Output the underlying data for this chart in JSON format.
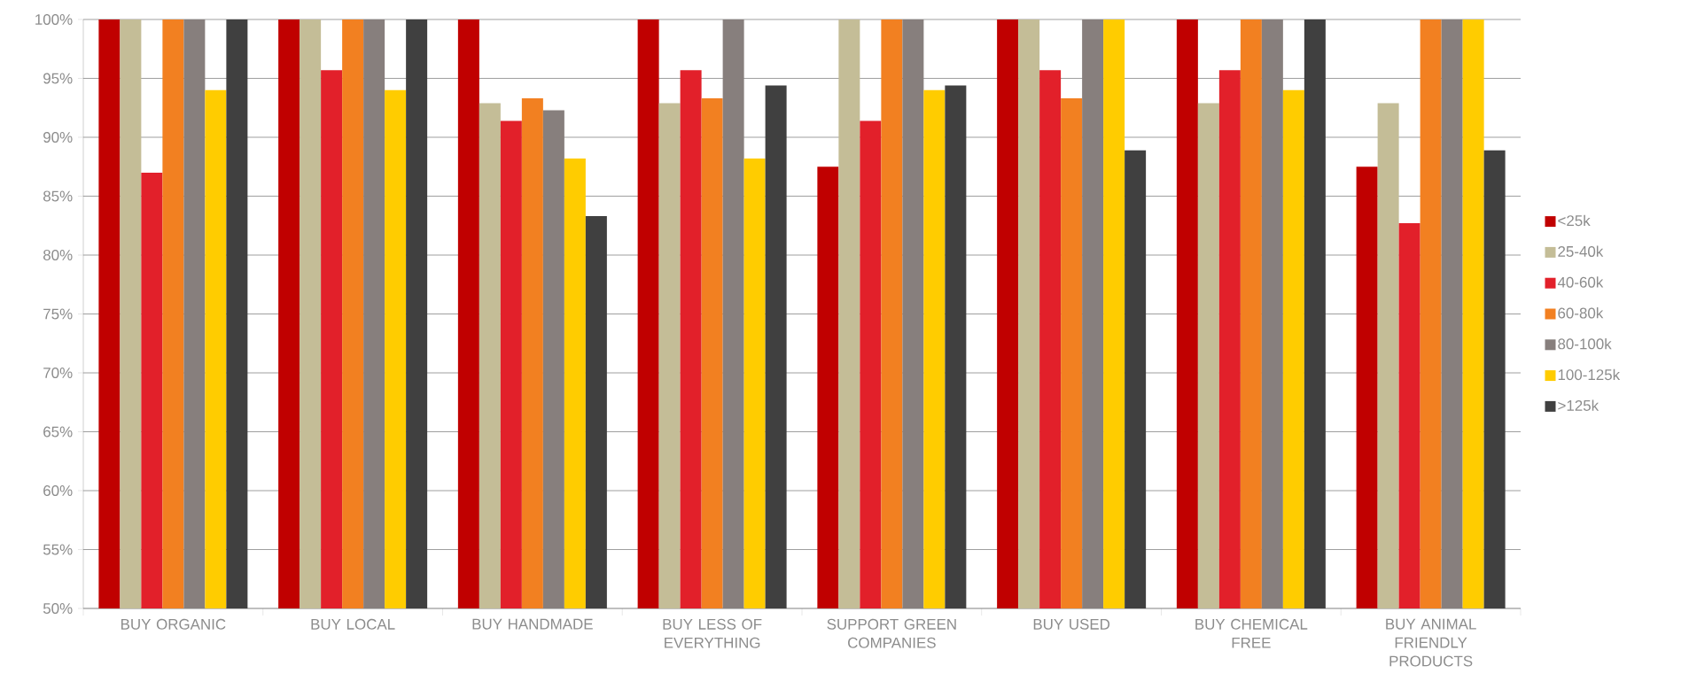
{
  "chart_data": {
    "type": "bar",
    "categories": [
      "BUY ORGANIC",
      "BUY LOCAL",
      "BUY HANDMADE",
      "BUY LESS OF EVERYTHING",
      "SUPPORT GREEN COMPANIES",
      "BUY USED",
      "BUY CHEMICAL FREE",
      "BUY ANIMAL FRIENDLY PRODUCTS"
    ],
    "series": [
      {
        "name": "<25k",
        "color": "#c00000",
        "values": [
          100,
          100,
          100,
          100,
          87.5,
          100,
          100,
          87.5
        ]
      },
      {
        "name": "25-40k",
        "color": "#c4bd97",
        "values": [
          100,
          100,
          92.9,
          92.9,
          100,
          100,
          92.9,
          92.9
        ]
      },
      {
        "name": "40-60k",
        "color": "#e2202a",
        "values": [
          87.0,
          95.7,
          91.4,
          95.7,
          91.4,
          95.7,
          95.7,
          82.7
        ]
      },
      {
        "name": "60-80k",
        "color": "#f28021",
        "values": [
          100,
          100,
          93.3,
          93.3,
          100,
          93.3,
          100,
          100
        ]
      },
      {
        "name": "80-100k",
        "color": "#877f7d",
        "values": [
          100,
          100,
          92.3,
          100,
          100,
          100,
          100,
          100
        ]
      },
      {
        "name": "100-125k",
        "color": "#ffcc00",
        "values": [
          94.0,
          94.0,
          88.2,
          88.2,
          94.0,
          100,
          94.0,
          100
        ]
      },
      {
        "name": ">125k",
        "color": "#404040",
        "values": [
          100,
          100,
          83.3,
          94.4,
          94.4,
          88.9,
          100,
          88.9
        ]
      }
    ],
    "ylim": [
      50,
      100
    ],
    "yticks": [
      {
        "value": 50,
        "label": "50%"
      },
      {
        "value": 55,
        "label": "55%"
      },
      {
        "value": 60,
        "label": "60%"
      },
      {
        "value": 65,
        "label": "65%"
      },
      {
        "value": 70,
        "label": "70%"
      },
      {
        "value": 75,
        "label": "75%"
      },
      {
        "value": 80,
        "label": "80%"
      },
      {
        "value": 85,
        "label": "85%"
      },
      {
        "value": 90,
        "label": "90%"
      },
      {
        "value": 95,
        "label": "95%"
      },
      {
        "value": 100,
        "label": "100%"
      }
    ],
    "grid": "y",
    "legend": "right"
  }
}
